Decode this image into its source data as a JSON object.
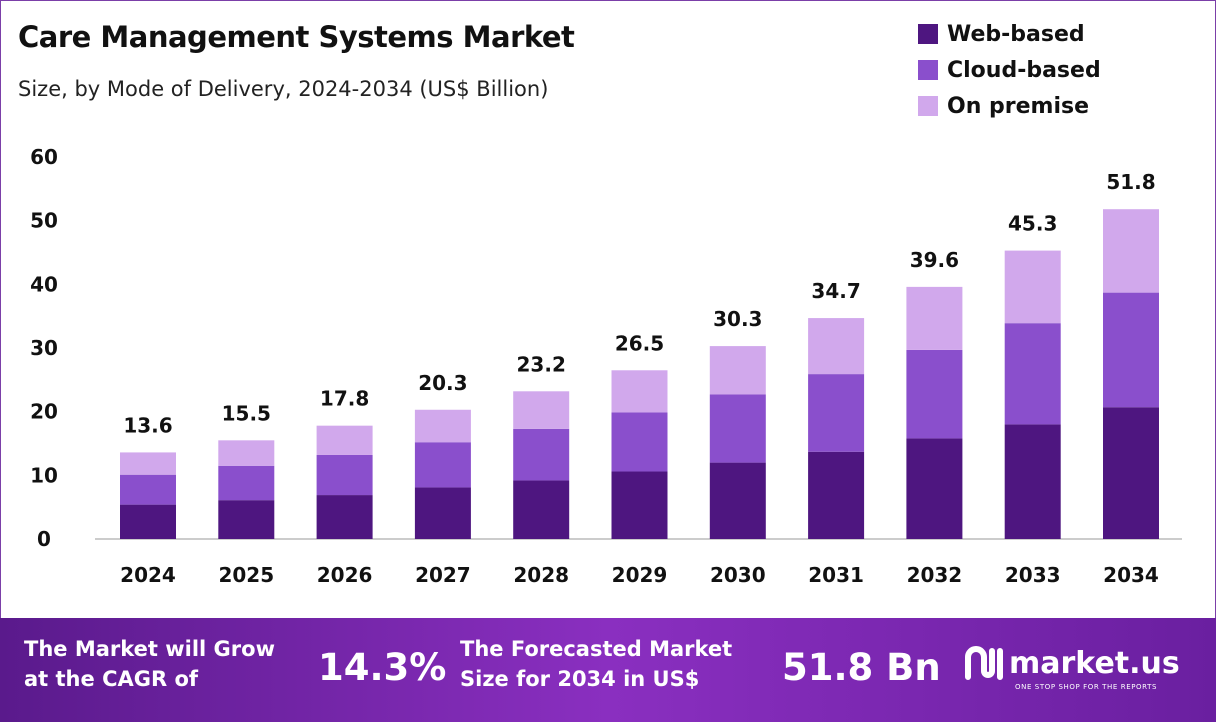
{
  "chart_data": {
    "type": "bar",
    "stacked": true,
    "title": "Care Management Systems Market",
    "subtitle": "Size, by Mode of Delivery, 2024-2034 (US$ Billion)",
    "categories": [
      "2024",
      "2025",
      "2026",
      "2027",
      "2028",
      "2029",
      "2030",
      "2031",
      "2032",
      "2033",
      "2034"
    ],
    "series": [
      {
        "name": "Web-based",
        "color": "#4e1680",
        "values": [
          5.4,
          6.1,
          6.9,
          8.1,
          9.2,
          10.6,
          12.0,
          13.7,
          15.8,
          18.0,
          20.7
        ]
      },
      {
        "name": "Cloud-based",
        "color": "#8a4fcc",
        "values": [
          4.7,
          5.4,
          6.3,
          7.1,
          8.1,
          9.3,
          10.7,
          12.2,
          13.9,
          15.9,
          18.0
        ]
      },
      {
        "name": "On premise",
        "color": "#d1a8ec",
        "values": [
          3.5,
          4.0,
          4.6,
          5.1,
          5.9,
          6.6,
          7.6,
          8.8,
          9.9,
          11.4,
          13.1
        ]
      }
    ],
    "totals": [
      "13.6",
      "15.5",
      "17.8",
      "20.3",
      "23.2",
      "26.5",
      "30.3",
      "34.7",
      "39.6",
      "45.3",
      "51.8"
    ],
    "yticks": [
      "0",
      "10",
      "20",
      "30",
      "40",
      "50",
      "60"
    ],
    "ylim": [
      0,
      60
    ],
    "grid": false,
    "legend": "top-right"
  },
  "footer": {
    "cagr_label": "The Market will Grow at the CAGR of",
    "cagr_line1": "The Market will Grow",
    "cagr_line2": "at the CAGR of",
    "cagr_value": "14.3%",
    "forecast_line1": "The Forecasted Market",
    "forecast_line2": "Size for 2034 in US$",
    "forecast_value": "51.8 Bn",
    "brand": "market.us",
    "tagline": "ONE STOP SHOP FOR THE REPORTS"
  }
}
